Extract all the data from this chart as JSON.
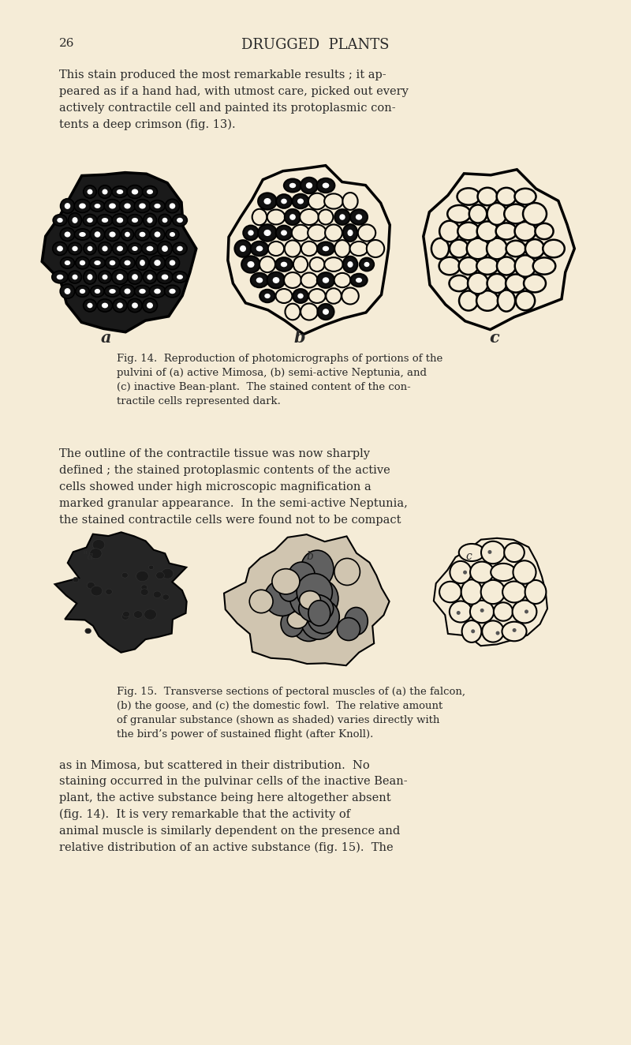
{
  "bg_color": "#f5ecd7",
  "text_color": "#2a2a2a",
  "page_number": "26",
  "header": "DRUGGED  PLANTS",
  "para1_lines": [
    "This stain produced the most remarkable results ; it ap-",
    "peared as if a hand had, with utmost care, picked out every",
    "actively contractile cell and painted its protoplasmic con-",
    "tents a deep crimson (fig. 13)."
  ],
  "fig14_caption_lines": [
    "Fig. 14.  Reproduction of photomicrographs of portions of the",
    "pulvini of (a) active Mimosa, (b) semi-active Neptunia, and",
    "(c) inactive Bean-plant.  The stained content of the con-",
    "tractile cells represented dark."
  ],
  "para2_lines": [
    "The outline of the contractile tissue was now sharply",
    "defined ; the stained protoplasmic contents of the active",
    "cells showed under high microscopic magnification a",
    "marked granular appearance.  In the semi-active Neptunia,",
    "the stained contractile cells were found not to be compact"
  ],
  "fig15_caption_lines": [
    "Fig. 15.  Transverse sections of pectoral muscles of (a) the falcon,",
    "(b) the goose, and (c) the domestic fowl.  The relative amount",
    "of granular substance (shown as shaded) varies directly with",
    "the bird’s power of sustained flight (after Knoll)."
  ],
  "para3_lines": [
    "as in Mimosa, but scattered in their distribution.  No",
    "staining occurred in the pulvinar cells of the inactive Bean-",
    "plant, the active substance being here altogether absent",
    "(fig. 14).  It is very remarkable that the activity of",
    "animal muscle is similarly dependent on the presence and",
    "relative distribution of an active substance (fig. 15).  The"
  ],
  "label_a": "a",
  "label_b": "b",
  "label_c": "c"
}
